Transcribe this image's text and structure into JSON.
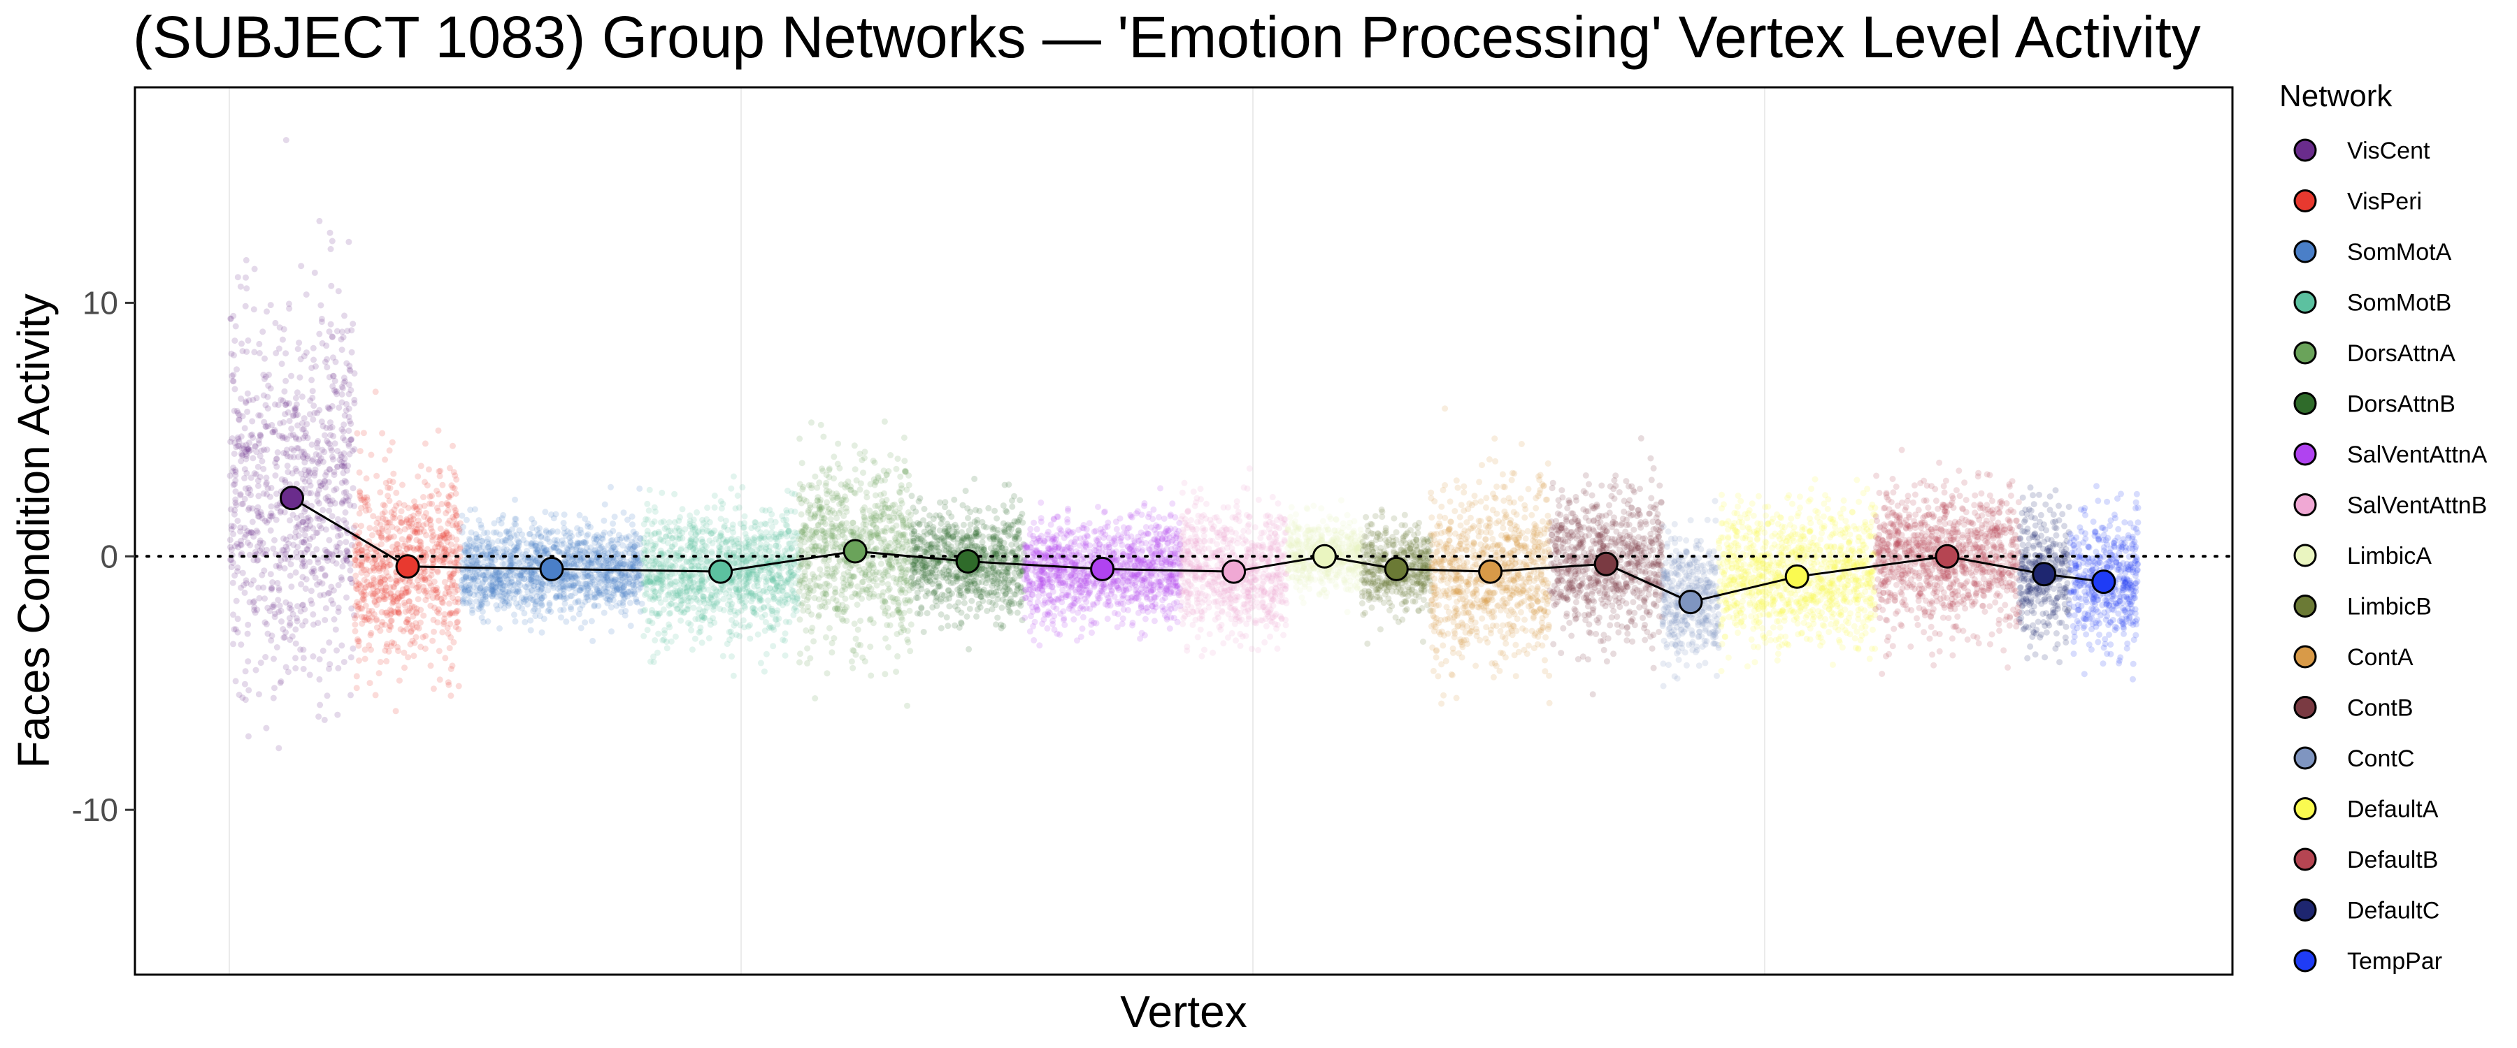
{
  "chart_data": {
    "type": "scatter",
    "title": "(SUBJECT 1083) Group Networks — 'Emotion Processing' Vertex Level Activity",
    "xlabel": "Vertex",
    "ylabel": "Faces Condition Activity",
    "ylim": [
      -16.5,
      18.5
    ],
    "yticks": [
      -10,
      0,
      10
    ],
    "reference_line_y": 0,
    "grid": true,
    "legend_title": "Network",
    "legend_position": "right",
    "series": [
      {
        "name": "VisCent",
        "color": "#6a2c8c",
        "mean": 2.3,
        "spread": 3.6,
        "width": 1.0
      },
      {
        "name": "VisPeri",
        "color": "#e8392f",
        "mean": -0.4,
        "spread": 1.9,
        "width": 0.85
      },
      {
        "name": "SomMotA",
        "color": "#4a7fc8",
        "mean": -0.5,
        "spread": 0.9,
        "width": 1.45
      },
      {
        "name": "SomMotB",
        "color": "#5cc1a0",
        "mean": -0.6,
        "spread": 1.2,
        "width": 1.25
      },
      {
        "name": "DorsAttnA",
        "color": "#6aa35a",
        "mean": 0.2,
        "spread": 1.8,
        "width": 0.9
      },
      {
        "name": "DorsAttnB",
        "color": "#2f6b2a",
        "mean": -0.2,
        "spread": 1.0,
        "width": 0.9
      },
      {
        "name": "SalVentAttnA",
        "color": "#b043f0",
        "mean": -0.5,
        "spread": 1.0,
        "width": 1.25
      },
      {
        "name": "SalVentAttnB",
        "color": "#f0a8d4",
        "mean": -0.6,
        "spread": 1.2,
        "width": 0.85
      },
      {
        "name": "LimbicA",
        "color": "#eaf5c0",
        "mean": 0.0,
        "spread": 0.7,
        "width": 0.6
      },
      {
        "name": "LimbicB",
        "color": "#6b7a35",
        "mean": -0.5,
        "spread": 0.8,
        "width": 0.55
      },
      {
        "name": "ContA",
        "color": "#d89a48",
        "mean": -0.6,
        "spread": 1.6,
        "width": 0.95
      },
      {
        "name": "ContB",
        "color": "#7a3a42",
        "mean": -0.3,
        "spread": 1.4,
        "width": 0.9
      },
      {
        "name": "ContC",
        "color": "#7f95c0",
        "mean": -1.8,
        "spread": 1.2,
        "width": 0.45
      },
      {
        "name": "DefaultA",
        "color": "#fafa50",
        "mean": -0.8,
        "spread": 1.3,
        "width": 1.25
      },
      {
        "name": "DefaultB",
        "color": "#b54552",
        "mean": 0.0,
        "spread": 1.3,
        "width": 1.15
      },
      {
        "name": "DefaultC",
        "color": "#1e2670",
        "mean": -0.7,
        "spread": 1.3,
        "width": 0.4
      },
      {
        "name": "TempPar",
        "color": "#1f3cf5",
        "mean": -1.0,
        "spread": 1.2,
        "width": 0.55
      }
    ]
  }
}
